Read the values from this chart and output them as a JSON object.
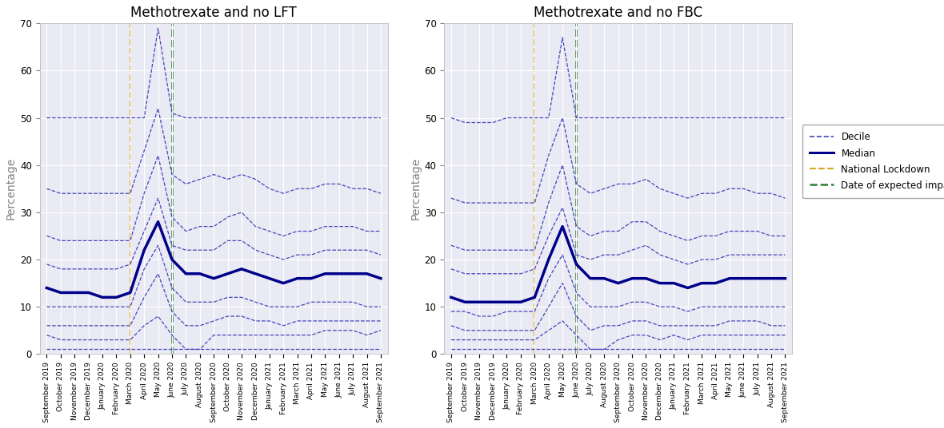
{
  "title_lft": "Methotrexate and no LFT",
  "title_fbc": "Methotrexate and no FBC",
  "ylabel": "Percentage",
  "ylim": [
    0,
    70
  ],
  "yticks": [
    0,
    10,
    20,
    30,
    40,
    50,
    60,
    70
  ],
  "line_color_dashed": "#4444bb",
  "line_color_solid": "#00008B",
  "lockdown_color": "#DAA520",
  "impact_color": "#2E7D32",
  "legend_labels": [
    "Decile",
    "Median",
    "National Lockdown",
    "Date of expected impact"
  ],
  "x_labels": [
    "September 2019",
    "October 2019",
    "November 2019",
    "December 2019",
    "January 2020",
    "February 2020",
    "March 2020",
    "April 2020",
    "May 2020",
    "June 2020",
    "July 2020",
    "August 2020",
    "September 2020",
    "October 2020",
    "November 2020",
    "December 2020",
    "January 2021",
    "February 2021",
    "March 2021",
    "April 2021",
    "May 2021",
    "June 2021",
    "July 2021",
    "August 2021",
    "September 2021"
  ],
  "lockdown_idx": 6,
  "impact_idx": 9,
  "lft_median": [
    14,
    13,
    13,
    13,
    12,
    12,
    13,
    22,
    28,
    20,
    17,
    17,
    16,
    17,
    18,
    17,
    16,
    15,
    16,
    16,
    17,
    17,
    17,
    17,
    16
  ],
  "lft_d10": [
    1,
    1,
    1,
    1,
    1,
    1,
    1,
    1,
    1,
    1,
    1,
    1,
    1,
    1,
    1,
    1,
    1,
    1,
    1,
    1,
    1,
    1,
    1,
    1,
    1
  ],
  "lft_d20": [
    4,
    3,
    3,
    3,
    3,
    3,
    3,
    6,
    8,
    4,
    1,
    1,
    4,
    4,
    4,
    4,
    4,
    4,
    4,
    4,
    5,
    5,
    5,
    4,
    5
  ],
  "lft_d30": [
    6,
    6,
    6,
    6,
    6,
    6,
    6,
    12,
    17,
    9,
    6,
    6,
    7,
    8,
    8,
    7,
    7,
    6,
    7,
    7,
    7,
    7,
    7,
    7,
    7
  ],
  "lft_d40": [
    10,
    10,
    10,
    10,
    10,
    10,
    10,
    18,
    23,
    14,
    11,
    11,
    11,
    12,
    12,
    11,
    10,
    10,
    10,
    11,
    11,
    11,
    11,
    10,
    10
  ],
  "lft_d60": [
    19,
    18,
    18,
    18,
    18,
    18,
    19,
    26,
    33,
    23,
    22,
    22,
    22,
    24,
    24,
    22,
    21,
    20,
    21,
    21,
    22,
    22,
    22,
    22,
    21
  ],
  "lft_d70": [
    25,
    24,
    24,
    24,
    24,
    24,
    24,
    34,
    42,
    29,
    26,
    27,
    27,
    29,
    30,
    27,
    26,
    25,
    26,
    26,
    27,
    27,
    27,
    26,
    26
  ],
  "lft_d80": [
    35,
    34,
    34,
    34,
    34,
    34,
    34,
    43,
    52,
    38,
    36,
    37,
    38,
    37,
    38,
    37,
    35,
    34,
    35,
    35,
    36,
    36,
    35,
    35,
    34
  ],
  "lft_d90": [
    50,
    50,
    50,
    50,
    50,
    50,
    50,
    50,
    69,
    51,
    50,
    50,
    50,
    50,
    50,
    50,
    50,
    50,
    50,
    50,
    50,
    50,
    50,
    50,
    50
  ],
  "fbc_median": [
    12,
    11,
    11,
    11,
    11,
    11,
    12,
    20,
    27,
    19,
    16,
    16,
    15,
    16,
    16,
    15,
    15,
    14,
    15,
    15,
    16,
    16,
    16,
    16,
    16
  ],
  "fbc_d10": [
    1,
    1,
    1,
    1,
    1,
    1,
    1,
    1,
    1,
    1,
    1,
    1,
    1,
    1,
    1,
    1,
    1,
    1,
    1,
    1,
    1,
    1,
    1,
    1,
    1
  ],
  "fbc_d20": [
    3,
    3,
    3,
    3,
    3,
    3,
    3,
    5,
    7,
    4,
    1,
    1,
    3,
    4,
    4,
    3,
    4,
    3,
    4,
    4,
    4,
    4,
    4,
    4,
    4
  ],
  "fbc_d30": [
    6,
    5,
    5,
    5,
    5,
    5,
    5,
    10,
    15,
    8,
    5,
    6,
    6,
    7,
    7,
    6,
    6,
    6,
    6,
    6,
    7,
    7,
    7,
    6,
    6
  ],
  "fbc_d40": [
    9,
    9,
    8,
    8,
    9,
    9,
    9,
    16,
    21,
    13,
    10,
    10,
    10,
    11,
    11,
    10,
    10,
    9,
    10,
    10,
    10,
    10,
    10,
    10,
    10
  ],
  "fbc_d60": [
    18,
    17,
    17,
    17,
    17,
    17,
    18,
    25,
    31,
    21,
    20,
    21,
    21,
    22,
    23,
    21,
    20,
    19,
    20,
    20,
    21,
    21,
    21,
    21,
    21
  ],
  "fbc_d70": [
    23,
    22,
    22,
    22,
    22,
    22,
    22,
    32,
    40,
    27,
    25,
    26,
    26,
    28,
    28,
    26,
    25,
    24,
    25,
    25,
    26,
    26,
    26,
    25,
    25
  ],
  "fbc_d80": [
    33,
    32,
    32,
    32,
    32,
    32,
    32,
    42,
    50,
    36,
    34,
    35,
    36,
    36,
    37,
    35,
    34,
    33,
    34,
    34,
    35,
    35,
    34,
    34,
    33
  ],
  "fbc_d90": [
    50,
    49,
    49,
    49,
    50,
    50,
    50,
    50,
    67,
    50,
    50,
    50,
    50,
    50,
    50,
    50,
    50,
    50,
    50,
    50,
    50,
    50,
    50,
    50,
    50
  ],
  "bg_color": "#eaeaf4",
  "grid_color": "#ffffff",
  "fig_width": 11.8,
  "fig_height": 5.36,
  "dpi": 100
}
